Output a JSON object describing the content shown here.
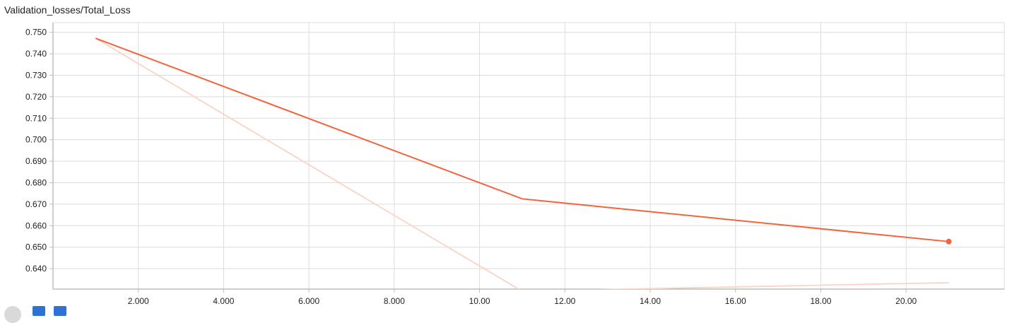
{
  "chart_data": {
    "type": "line",
    "title": "Validation_losses/Total_Loss",
    "xlabel": "",
    "ylabel": "",
    "xlim": [
      0,
      22.3
    ],
    "ylim": [
      0.6305,
      0.7545
    ],
    "xticks": [
      2,
      4,
      6,
      8,
      10,
      12,
      14,
      16,
      18,
      20
    ],
    "xtick_labels": [
      "2.000",
      "4.000",
      "6.000",
      "8.000",
      "10.00",
      "12.00",
      "14.00",
      "16.00",
      "18.00",
      "20.00"
    ],
    "yticks": [
      0.64,
      0.65,
      0.66,
      0.67,
      0.68,
      0.69,
      0.7,
      0.71,
      0.72,
      0.73,
      0.74,
      0.75
    ],
    "ytick_labels": [
      "0.640",
      "0.650",
      "0.660",
      "0.670",
      "0.680",
      "0.690",
      "0.700",
      "0.710",
      "0.720",
      "0.730",
      "0.740",
      "0.750"
    ],
    "grid": true,
    "series": [
      {
        "role": "smoothed",
        "color": "#f4643c",
        "x": [
          1,
          11,
          21
        ],
        "y": [
          0.7472,
          0.6725,
          0.6526
        ],
        "last_point_marker": true
      },
      {
        "role": "raw",
        "color": "#fbd3c4",
        "x": [
          1,
          11,
          21
        ],
        "y": [
          0.7472,
          0.6295,
          0.6335
        ]
      }
    ]
  },
  "controls": [
    {
      "icon": "circle-button-icon"
    },
    {
      "icon": "expand-icon"
    },
    {
      "icon": "data-icon"
    }
  ]
}
